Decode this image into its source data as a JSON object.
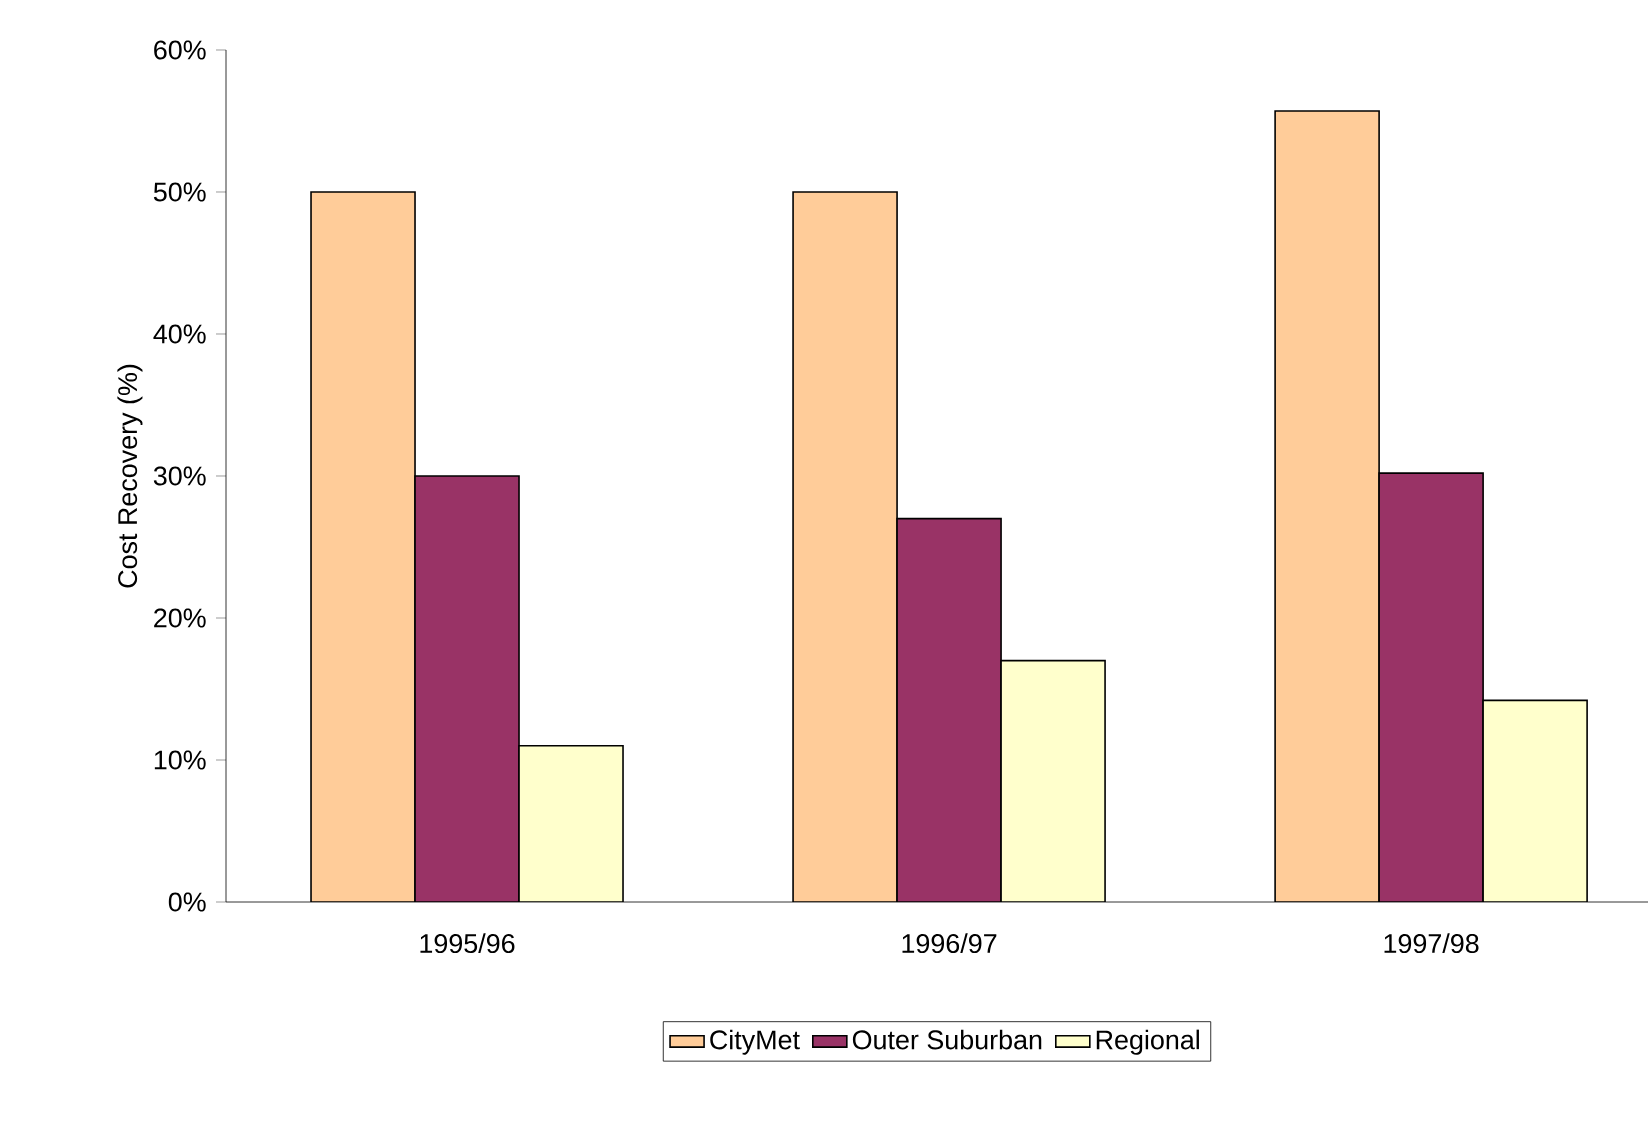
{
  "chart_data": {
    "type": "bar",
    "ylabel": "Cost Recovery (%)",
    "categories": [
      "1995/96",
      "1996/97",
      "1997/98"
    ],
    "series": [
      {
        "name": "CityMet",
        "color": "#ffcc99",
        "values": [
          50,
          50,
          55.7
        ]
      },
      {
        "name": "Outer Suburban",
        "color": "#993366",
        "values": [
          30,
          27,
          30.2
        ]
      },
      {
        "name": "Regional",
        "color": "#ffffcc",
        "values": [
          11,
          17,
          14.2
        ]
      }
    ],
    "ylim": [
      0,
      60
    ],
    "yticks": [
      {
        "value": 0,
        "label": "0%"
      },
      {
        "value": 10,
        "label": "10%"
      },
      {
        "value": 20,
        "label": "20%"
      },
      {
        "value": 30,
        "label": "30%"
      },
      {
        "value": 40,
        "label": "40%"
      },
      {
        "value": 50,
        "label": "50%"
      },
      {
        "value": 60,
        "label": "60%"
      }
    ],
    "grid": false,
    "legend": "bottom"
  }
}
